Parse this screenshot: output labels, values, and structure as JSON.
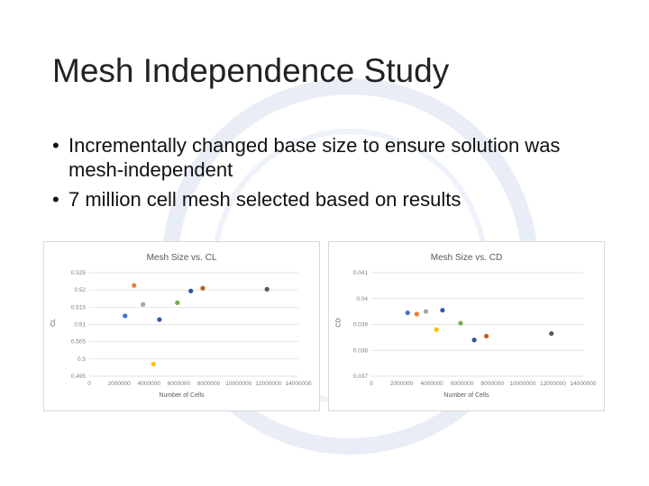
{
  "slide": {
    "title": "Mesh Independence Study",
    "bullets": [
      "Incrementally changed base size to ensure solution was mesh-independent",
      "7 million cell mesh selected based on results"
    ]
  },
  "chart_data": [
    {
      "type": "scatter",
      "title": "Mesh Size vs. CL",
      "xlabel": "Number of Cells",
      "ylabel": "CL",
      "xlim": [
        0,
        14000000
      ],
      "ylim": [
        0.495,
        0.525
      ],
      "xticks": [
        "0",
        "2000000",
        "4000000",
        "6000000",
        "8000000",
        "10000000",
        "12000000",
        "14000000"
      ],
      "yticks": [
        "0.495",
        "0.5",
        "0.505",
        "0.51",
        "0.515",
        "0.52",
        "0.525"
      ],
      "grid": true,
      "points": [
        {
          "x": 2400000,
          "y": 0.5125,
          "color": "#4472C4"
        },
        {
          "x": 3000000,
          "y": 0.5213,
          "color": "#ED7D31"
        },
        {
          "x": 3600000,
          "y": 0.5158,
          "color": "#A5A5A5"
        },
        {
          "x": 4300000,
          "y": 0.4985,
          "color": "#FFC000"
        },
        {
          "x": 4700000,
          "y": 0.5114,
          "color": "#2E5DA8"
        },
        {
          "x": 5900000,
          "y": 0.5163,
          "color": "#70AD47"
        },
        {
          "x": 6800000,
          "y": 0.5197,
          "color": "#2F5597"
        },
        {
          "x": 7600000,
          "y": 0.5205,
          "color": "#C55A11"
        },
        {
          "x": 11900000,
          "y": 0.5202,
          "color": "#595959"
        }
      ]
    },
    {
      "type": "scatter",
      "title": "Mesh Size vs. CD",
      "xlabel": "Number of Cells",
      "ylabel": "CD",
      "xlim": [
        0,
        14000000
      ],
      "ylim": [
        0.037,
        0.041
      ],
      "xticks": [
        "0",
        "2000000",
        "4000000",
        "6000000",
        "8000000",
        "10000000",
        "12000000",
        "14000000"
      ],
      "yticks": [
        "0.037",
        "0.038",
        "0.039",
        "0.04",
        "0.041"
      ],
      "grid": true,
      "points": [
        {
          "x": 2400000,
          "y": 0.03945,
          "color": "#4472C4"
        },
        {
          "x": 3000000,
          "y": 0.0394,
          "color": "#ED7D31"
        },
        {
          "x": 3600000,
          "y": 0.0395,
          "color": "#A5A5A5"
        },
        {
          "x": 4300000,
          "y": 0.0388,
          "color": "#FFC000"
        },
        {
          "x": 4700000,
          "y": 0.03955,
          "color": "#2E5DA8"
        },
        {
          "x": 5900000,
          "y": 0.03905,
          "color": "#70AD47"
        },
        {
          "x": 6800000,
          "y": 0.0384,
          "color": "#2F5597"
        },
        {
          "x": 7600000,
          "y": 0.03855,
          "color": "#C55A11"
        },
        {
          "x": 11900000,
          "y": 0.03865,
          "color": "#595959"
        }
      ]
    }
  ]
}
